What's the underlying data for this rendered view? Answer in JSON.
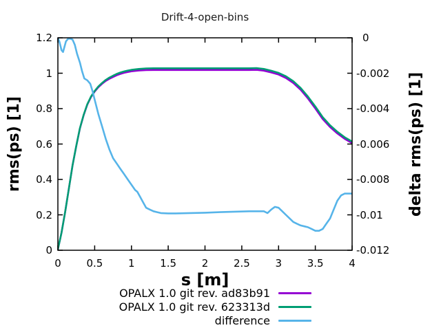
{
  "title": "Drift-4-open-bins",
  "background_color": "#ffffff",
  "axis_color": "#000000",
  "chart_data": {
    "type": "line",
    "title": "Drift-4-open-bins",
    "xlabel": "s [m]",
    "ylabel_left": "rms(ps) [1]",
    "ylabel_right": "delta rms(ps) [1]",
    "xlim": [
      0,
      4
    ],
    "ylim_left": [
      0,
      1.2
    ],
    "ylim_right": [
      -0.012,
      0
    ],
    "grid": false,
    "legend_position": "below-right",
    "x_ticks": [
      "0",
      "0.5",
      "1",
      "1.5",
      "2",
      "2.5",
      "3",
      "3.5",
      "4"
    ],
    "x_tick_values": [
      0,
      0.5,
      1,
      1.5,
      2,
      2.5,
      3,
      3.5,
      4
    ],
    "y_ticks_left": [
      "0",
      "0.2",
      "0.4",
      "0.6",
      "0.8",
      "1",
      "1.2"
    ],
    "y_tick_values_left": [
      0,
      0.2,
      0.4,
      0.6,
      0.8,
      1,
      1.2
    ],
    "y_ticks_right": [
      "0",
      "-0.002",
      "-0.004",
      "-0.006",
      "-0.008",
      "-0.01",
      "-0.012"
    ],
    "y_tick_values_right": [
      0,
      -0.002,
      -0.004,
      -0.006,
      -0.008,
      -0.01,
      -0.012
    ],
    "series": [
      {
        "label": "OPALX 1.0 git rev. ad83b91",
        "color": "#9400d3",
        "axis": "left",
        "x": [
          0,
          0.05,
          0.1,
          0.15,
          0.2,
          0.25,
          0.3,
          0.35,
          0.4,
          0.45,
          0.5,
          0.55,
          0.6,
          0.65,
          0.7,
          0.75,
          0.8,
          0.85,
          0.9,
          0.95,
          1.0,
          1.1,
          1.2,
          1.3,
          1.4,
          1.6,
          1.8,
          2.0,
          2.2,
          2.4,
          2.6,
          2.7,
          2.8,
          2.9,
          3.0,
          3.1,
          3.2,
          3.3,
          3.4,
          3.5,
          3.6,
          3.7,
          3.8,
          3.9,
          4.0
        ],
        "y": [
          0.005,
          0.0995,
          0.2199,
          0.3498,
          0.4798,
          0.5894,
          0.6886,
          0.7628,
          0.8226,
          0.865,
          0.8965,
          0.9207,
          0.94,
          0.9564,
          0.9687,
          0.979,
          0.9889,
          0.9963,
          1.0023,
          1.007,
          1.0107,
          1.0152,
          1.0178,
          1.0181,
          1.0181,
          1.0181,
          1.0181,
          1.0181,
          1.0181,
          1.0181,
          1.0181,
          1.0192,
          1.0142,
          1.0043,
          0.9925,
          0.9732,
          0.9447,
          0.9064,
          0.8573,
          0.8011,
          0.7412,
          0.6958,
          0.6598,
          0.6292,
          0.6052
        ]
      },
      {
        "label": "OPALX 1.0 git rev. 623313d",
        "color": "#009e73",
        "axis": "left",
        "x": [
          0,
          0.05,
          0.1,
          0.15,
          0.2,
          0.25,
          0.3,
          0.35,
          0.4,
          0.45,
          0.5,
          0.55,
          0.6,
          0.65,
          0.7,
          0.75,
          0.8,
          0.85,
          0.9,
          0.95,
          1.0,
          1.1,
          1.2,
          1.3,
          1.4,
          1.6,
          1.8,
          2.0,
          2.2,
          2.4,
          2.6,
          2.7,
          2.8,
          2.9,
          3.0,
          3.1,
          3.2,
          3.3,
          3.4,
          3.5,
          3.6,
          3.7,
          3.8,
          3.9,
          4.0
        ],
        "y": [
          0.005,
          0.1,
          0.22,
          0.35,
          0.48,
          0.59,
          0.69,
          0.765,
          0.825,
          0.868,
          0.9,
          0.925,
          0.945,
          0.962,
          0.975,
          0.986,
          0.996,
          1.004,
          1.01,
          1.015,
          1.019,
          1.024,
          1.027,
          1.028,
          1.028,
          1.028,
          1.028,
          1.028,
          1.028,
          1.028,
          1.028,
          1.029,
          1.024,
          1.014,
          1.002,
          0.983,
          0.955,
          0.917,
          0.868,
          0.812,
          0.752,
          0.706,
          0.669,
          0.638,
          0.614
        ]
      },
      {
        "label": "difference",
        "color": "#56b4e9",
        "axis": "right",
        "x": [
          0,
          0.02,
          0.05,
          0.07,
          0.09,
          0.11,
          0.14,
          0.17,
          0.2,
          0.23,
          0.26,
          0.3,
          0.33,
          0.36,
          0.4,
          0.44,
          0.47,
          0.5,
          0.55,
          0.6,
          0.65,
          0.7,
          0.75,
          0.8,
          0.85,
          0.9,
          0.95,
          1.0,
          1.05,
          1.08,
          1.12,
          1.16,
          1.2,
          1.25,
          1.3,
          1.35,
          1.4,
          1.5,
          1.6,
          1.8,
          2.0,
          2.2,
          2.4,
          2.6,
          2.7,
          2.8,
          2.85,
          2.9,
          2.95,
          3.0,
          3.05,
          3.1,
          3.15,
          3.2,
          3.25,
          3.3,
          3.35,
          3.4,
          3.45,
          3.5,
          3.55,
          3.6,
          3.65,
          3.7,
          3.75,
          3.8,
          3.85,
          3.9,
          3.95,
          4.0
        ],
        "y": [
          0,
          -0.0002,
          -0.0007,
          -0.0008,
          -0.0005,
          -0.0002,
          -5e-05,
          -5e-05,
          -0.0001,
          -0.0004,
          -0.0009,
          -0.0014,
          -0.0019,
          -0.0023,
          -0.0024,
          -0.0026,
          -0.003,
          -0.0035,
          -0.0043,
          -0.005,
          -0.0057,
          -0.0063,
          -0.0068,
          -0.0071,
          -0.0074,
          -0.0077,
          -0.008,
          -0.0083,
          -0.0086,
          -0.0087,
          -0.009,
          -0.0093,
          -0.0096,
          -0.0097,
          -0.0098,
          -0.00985,
          -0.0099,
          -0.00992,
          -0.00992,
          -0.0099,
          -0.00988,
          -0.00985,
          -0.00982,
          -0.0098,
          -0.0098,
          -0.0098,
          -0.0099,
          -0.0097,
          -0.00955,
          -0.0096,
          -0.0098,
          -0.01,
          -0.0102,
          -0.0104,
          -0.0105,
          -0.0106,
          -0.01065,
          -0.0107,
          -0.0108,
          -0.0109,
          -0.0109,
          -0.0108,
          -0.0105,
          -0.0102,
          -0.0097,
          -0.0092,
          -0.0089,
          -0.0088,
          -0.0088,
          -0.0088
        ]
      }
    ]
  }
}
